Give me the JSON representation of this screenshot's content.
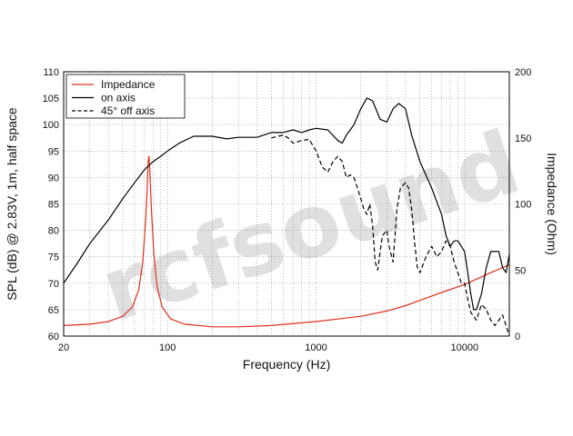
{
  "chart_data": {
    "type": "line",
    "xlabel": "Frequency (Hz)",
    "ylabel_left": "SPL (dB) @ 2.83V, 1m, half space",
    "ylabel_right": "Impedance (Ohm)",
    "x_scale": "log",
    "xlim": [
      20,
      20000
    ],
    "ylim_left": [
      60,
      110
    ],
    "ylim_right": [
      0,
      200
    ],
    "x_ticks": [
      {
        "value": 20,
        "label": "20"
      },
      {
        "value": 100,
        "label": "100"
      },
      {
        "value": 1000,
        "label": "1000"
      },
      {
        "value": 10000,
        "label": "10000"
      }
    ],
    "y_ticks_left": [
      {
        "value": 60,
        "label": "60"
      },
      {
        "value": 65,
        "label": "65"
      },
      {
        "value": 70,
        "label": "70"
      },
      {
        "value": 75,
        "label": "75"
      },
      {
        "value": 80,
        "label": "80"
      },
      {
        "value": 85,
        "label": "85"
      },
      {
        "value": 90,
        "label": "90"
      },
      {
        "value": 95,
        "label": "95"
      },
      {
        "value": 100,
        "label": "100"
      },
      {
        "value": 105,
        "label": "105"
      },
      {
        "value": 110,
        "label": "110"
      }
    ],
    "y_ticks_right": [
      {
        "value": 0,
        "label": "0"
      },
      {
        "value": 50,
        "label": "50"
      },
      {
        "value": 100,
        "label": "100"
      },
      {
        "value": 150,
        "label": "150"
      },
      {
        "value": 200,
        "label": "200"
      }
    ],
    "grid": true,
    "legend_position": "top-left",
    "watermark": "rcfsound",
    "series": [
      {
        "name": "Impedance",
        "axis": "right",
        "color": "#e0301e",
        "dash": "solid",
        "points": [
          [
            20,
            8
          ],
          [
            30,
            9
          ],
          [
            40,
            11
          ],
          [
            50,
            15
          ],
          [
            58,
            22
          ],
          [
            64,
            35
          ],
          [
            68,
            55
          ],
          [
            71,
            85
          ],
          [
            73,
            110
          ],
          [
            74,
            132
          ],
          [
            75,
            136
          ],
          [
            76,
            126
          ],
          [
            78,
            95
          ],
          [
            81,
            62
          ],
          [
            85,
            38
          ],
          [
            92,
            22
          ],
          [
            105,
            13
          ],
          [
            130,
            9
          ],
          [
            200,
            7
          ],
          [
            300,
            7
          ],
          [
            500,
            8
          ],
          [
            800,
            10
          ],
          [
            1000,
            11
          ],
          [
            2000,
            15
          ],
          [
            3000,
            19
          ],
          [
            4000,
            23
          ],
          [
            5000,
            27
          ],
          [
            7000,
            33
          ],
          [
            10000,
            39
          ],
          [
            15000,
            48
          ],
          [
            20000,
            54
          ]
        ]
      },
      {
        "name": "on axis",
        "axis": "left",
        "color": "#000000",
        "dash": "solid",
        "points": [
          [
            20,
            70
          ],
          [
            25,
            74
          ],
          [
            30,
            77.5
          ],
          [
            40,
            82
          ],
          [
            50,
            86
          ],
          [
            60,
            89
          ],
          [
            70,
            91.5
          ],
          [
            80,
            93
          ],
          [
            90,
            94
          ],
          [
            100,
            95
          ],
          [
            120,
            96.5
          ],
          [
            150,
            97.8
          ],
          [
            200,
            97.8
          ],
          [
            250,
            97.3
          ],
          [
            300,
            97.6
          ],
          [
            400,
            97.6
          ],
          [
            500,
            98.5
          ],
          [
            600,
            98.5
          ],
          [
            700,
            99
          ],
          [
            800,
            98.5
          ],
          [
            900,
            99
          ],
          [
            1000,
            99.3
          ],
          [
            1200,
            99
          ],
          [
            1400,
            97
          ],
          [
            1500,
            96.5
          ],
          [
            1600,
            98
          ],
          [
            1700,
            99
          ],
          [
            1800,
            100
          ],
          [
            2000,
            103
          ],
          [
            2200,
            105
          ],
          [
            2400,
            104.5
          ],
          [
            2700,
            101
          ],
          [
            3000,
            100.5
          ],
          [
            3300,
            103
          ],
          [
            3600,
            104
          ],
          [
            4000,
            103
          ],
          [
            4400,
            98
          ],
          [
            5000,
            93
          ],
          [
            6000,
            88
          ],
          [
            7000,
            83
          ],
          [
            7500,
            79
          ],
          [
            8000,
            77
          ],
          [
            8500,
            78
          ],
          [
            9000,
            78
          ],
          [
            10000,
            76
          ],
          [
            10500,
            72
          ],
          [
            11000,
            68
          ],
          [
            11500,
            65
          ],
          [
            12000,
            65
          ],
          [
            13000,
            68
          ],
          [
            14000,
            73
          ],
          [
            15000,
            76
          ],
          [
            17000,
            76
          ],
          [
            18000,
            73
          ],
          [
            19000,
            72
          ],
          [
            20000,
            75.5
          ]
        ]
      },
      {
        "name": "45° off axis",
        "axis": "left",
        "color": "#000000",
        "dash": "dashed",
        "points": [
          [
            500,
            97.5
          ],
          [
            600,
            98
          ],
          [
            650,
            97.5
          ],
          [
            700,
            96.5
          ],
          [
            800,
            97
          ],
          [
            900,
            97.2
          ],
          [
            1000,
            95
          ],
          [
            1100,
            92
          ],
          [
            1200,
            91
          ],
          [
            1300,
            93
          ],
          [
            1400,
            94
          ],
          [
            1500,
            93
          ],
          [
            1600,
            90
          ],
          [
            1700,
            90.5
          ],
          [
            1800,
            90
          ],
          [
            1900,
            88
          ],
          [
            2000,
            86
          ],
          [
            2100,
            84
          ],
          [
            2200,
            83
          ],
          [
            2300,
            85
          ],
          [
            2400,
            81
          ],
          [
            2500,
            74
          ],
          [
            2600,
            72.5
          ],
          [
            2700,
            76
          ],
          [
            2800,
            79
          ],
          [
            3000,
            80
          ],
          [
            3100,
            77
          ],
          [
            3300,
            74
          ],
          [
            3500,
            84
          ],
          [
            3700,
            88
          ],
          [
            4000,
            89
          ],
          [
            4200,
            88
          ],
          [
            4400,
            84
          ],
          [
            4600,
            78
          ],
          [
            4800,
            73
          ],
          [
            5000,
            72
          ],
          [
            5500,
            75
          ],
          [
            6000,
            77
          ],
          [
            6500,
            75
          ],
          [
            7000,
            76
          ],
          [
            7500,
            78
          ],
          [
            8000,
            77
          ],
          [
            8500,
            74
          ],
          [
            9000,
            72
          ],
          [
            9500,
            70
          ],
          [
            10000,
            70
          ],
          [
            10500,
            67
          ],
          [
            11000,
            64.5
          ],
          [
            12000,
            63
          ],
          [
            13000,
            66
          ],
          [
            14000,
            65
          ],
          [
            15000,
            63
          ],
          [
            16000,
            62
          ],
          [
            17000,
            63
          ],
          [
            18000,
            64
          ],
          [
            19000,
            62
          ],
          [
            20000,
            60
          ]
        ]
      }
    ]
  }
}
